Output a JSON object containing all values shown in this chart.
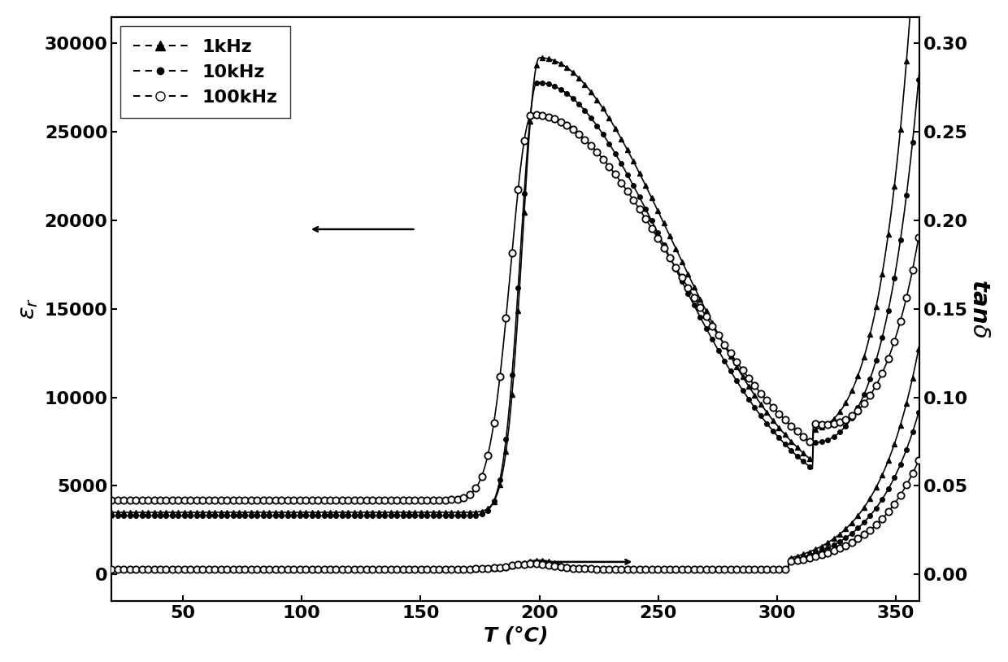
{
  "title": "",
  "xlabel": "T (°C)",
  "ylabel_left": "$\\varepsilon_r$",
  "ylabel_right": "tan$\\delta$",
  "xlim": [
    20,
    360
  ],
  "ylim_left": [
    -1500,
    31500
  ],
  "ylim_right": [
    -0.015,
    0.315
  ],
  "xticks": [
    50,
    100,
    150,
    200,
    250,
    300,
    350
  ],
  "yticks_left": [
    0,
    5000,
    10000,
    15000,
    20000,
    25000,
    30000
  ],
  "yticks_right": [
    0.0,
    0.05,
    0.1,
    0.15,
    0.2,
    0.25,
    0.3
  ],
  "legend_entries": [
    "1kHz",
    "10kHz",
    "100kHz"
  ],
  "peak_T_1khz": 200,
  "peak_T_10khz": 199,
  "peak_T_100khz": 197,
  "peak_eps_1khz": 29200,
  "peak_eps_10khz": 27800,
  "peak_eps_100khz": 26000,
  "eps_baseline_low_1khz": 3500,
  "eps_baseline_low_10khz": 3300,
  "eps_baseline_low_100khz": 4200,
  "tan_high_T_scale_1khz": 0.006,
  "tan_high_T_scale_10khz": 0.005,
  "tan_high_T_scale_100khz": 0.004,
  "fontsize_label": 18,
  "fontsize_tick": 16,
  "fontsize_legend": 16
}
